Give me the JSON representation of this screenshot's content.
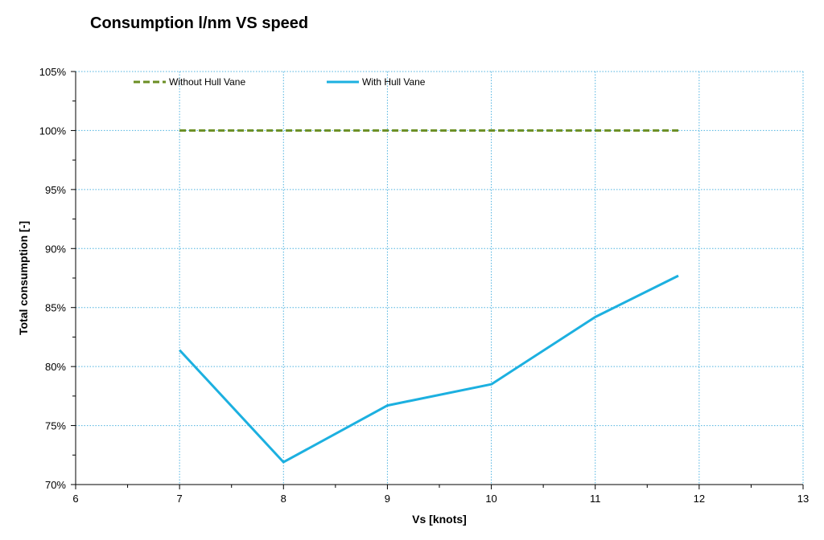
{
  "chart_data": {
    "type": "line",
    "title": "Consumption l/nm VS speed",
    "xlabel": "Vs [knots]",
    "ylabel": "Total consumption [-]",
    "xlim": [
      6,
      13
    ],
    "ylim": [
      70,
      105
    ],
    "x_ticks": [
      6,
      7,
      8,
      9,
      10,
      11,
      12,
      13
    ],
    "y_ticks": [
      70,
      75,
      80,
      85,
      90,
      95,
      100,
      105
    ],
    "y_tick_format": "percent",
    "grid": true,
    "legend_position": "top",
    "series": [
      {
        "name": "Without Hull Vane",
        "color": "#6b8e23",
        "style": "dashed",
        "x": [
          7,
          8,
          9,
          10,
          11,
          11.8
        ],
        "y": [
          100,
          100,
          100,
          100,
          100,
          100
        ]
      },
      {
        "name": "With Hull Vane",
        "color": "#1cb0e0",
        "style": "solid",
        "x": [
          7,
          8,
          9,
          10,
          11,
          11.8
        ],
        "y": [
          81.4,
          71.9,
          76.7,
          78.5,
          84.2,
          87.7
        ]
      }
    ]
  }
}
